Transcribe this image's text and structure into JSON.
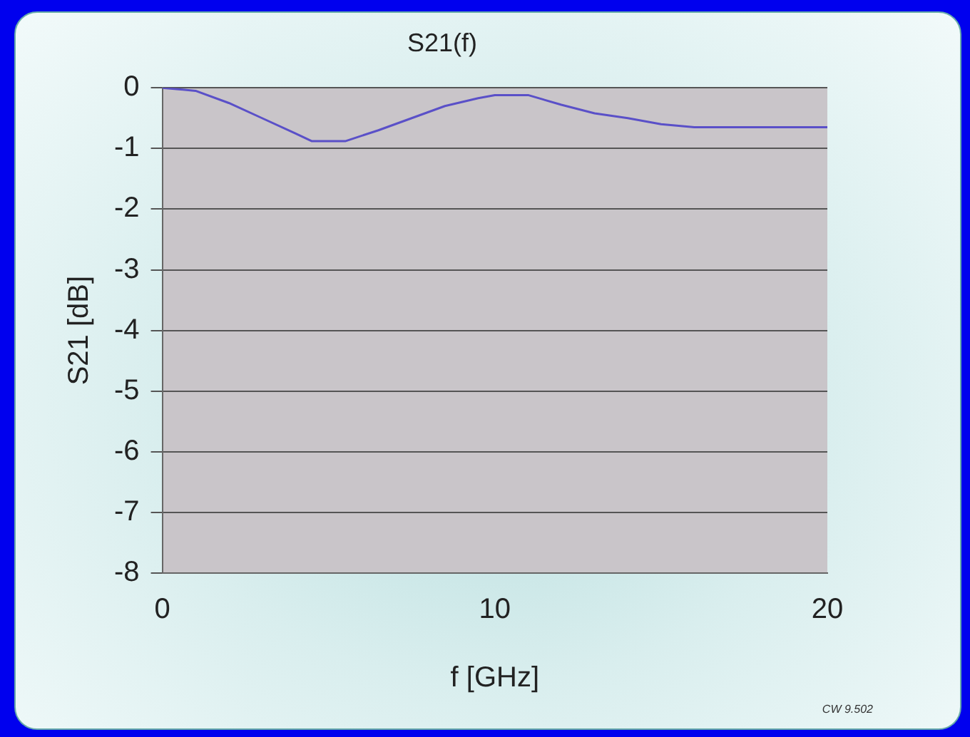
{
  "chart_data": {
    "type": "line",
    "title": "S21(f)",
    "xlabel": "f [GHz]",
    "ylabel": "S21 [dB]",
    "x": [
      0,
      1,
      2,
      3,
      4,
      4.5,
      5.5,
      6.5,
      7.5,
      8.5,
      9.5,
      10,
      11,
      12,
      13,
      14,
      15,
      16,
      17,
      18,
      19,
      20
    ],
    "series": [
      {
        "color": "#5a50c8",
        "values": [
          0,
          -0.05,
          -0.25,
          -0.5,
          -0.75,
          -0.88,
          -0.88,
          -0.7,
          -0.5,
          -0.3,
          -0.17,
          -0.12,
          -0.12,
          -0.28,
          -0.42,
          -0.5,
          -0.6,
          -0.65,
          -0.65,
          -0.65,
          -0.65,
          -0.65
        ]
      }
    ],
    "xlim": [
      0,
      20
    ],
    "xticks": [
      0,
      10,
      20
    ],
    "ylim": [
      -8,
      0
    ],
    "yticks": [
      -8,
      -7,
      -6,
      -5,
      -4,
      -3,
      -2,
      -1,
      0
    ],
    "grid": "y",
    "legend": false,
    "marker": "none",
    "line_style": "solid",
    "annotations": [
      "CW 9.502"
    ]
  }
}
